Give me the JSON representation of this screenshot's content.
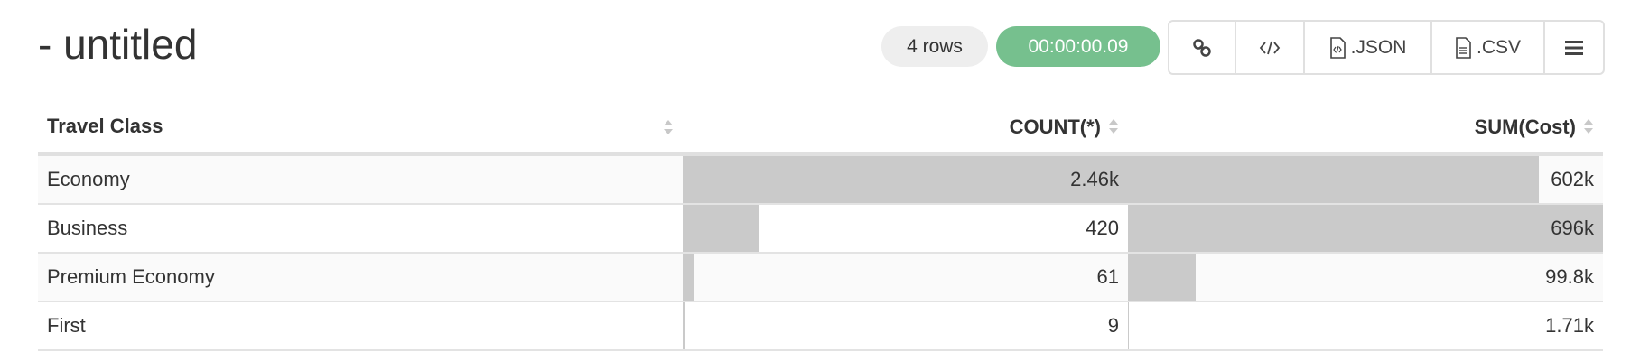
{
  "header": {
    "title": "- untitled",
    "row_count": "4 rows",
    "elapsed": "00:00:00.09"
  },
  "toolbar": {
    "link_icon": "link-icon",
    "embed_icon": "code-icon",
    "json_label": ".JSON",
    "csv_label": ".CSV",
    "menu_icon": "hamburger-menu-icon"
  },
  "colors": {
    "elapsed_bg": "#76c08e",
    "bar": "#cacaca"
  },
  "table": {
    "columns": [
      "Travel Class",
      "COUNT(*)",
      "SUM(Cost)"
    ],
    "rows": [
      {
        "label": "Economy",
        "count": "2.46k",
        "count_value": 2460,
        "sum": "602k",
        "sum_value": 602000
      },
      {
        "label": "Business",
        "count": "420",
        "count_value": 420,
        "sum": "696k",
        "sum_value": 696000
      },
      {
        "label": "Premium Economy",
        "count": "61",
        "count_value": 61,
        "sum": "99.8k",
        "sum_value": 99800
      },
      {
        "label": "First",
        "count": "9",
        "count_value": 9,
        "sum": "1.71k",
        "sum_value": 1710
      }
    ]
  }
}
